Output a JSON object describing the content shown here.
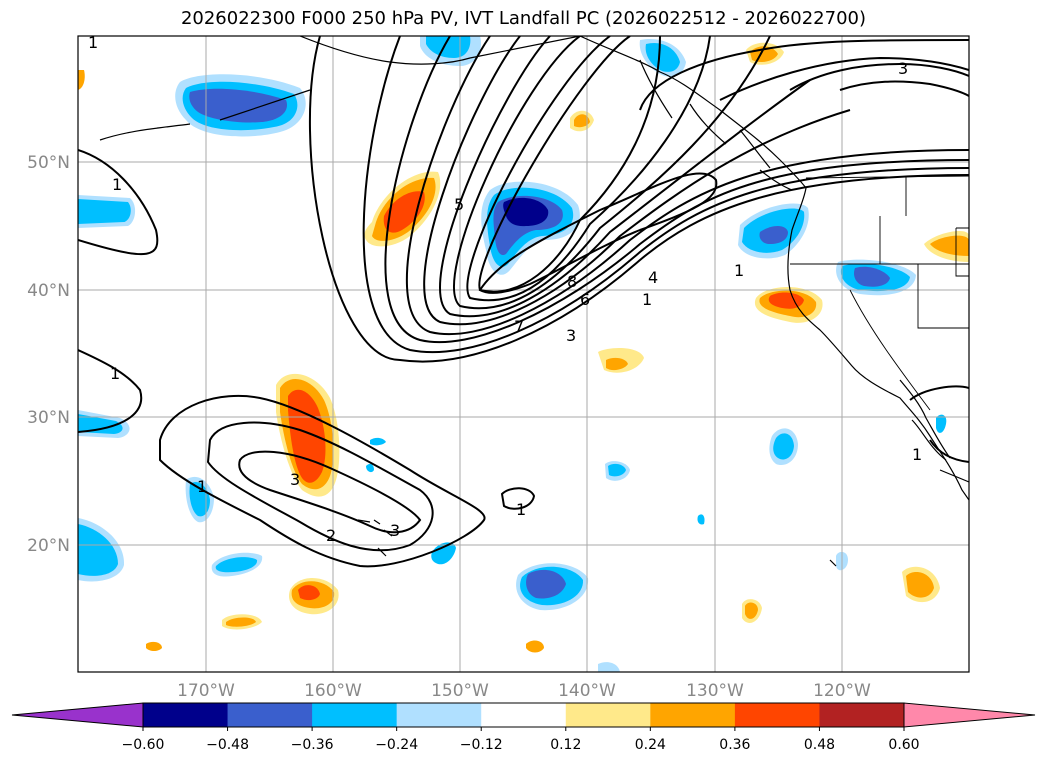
{
  "title": "2026022300 F000 250 hPa PV, IVT Landfall PC (2026022512 - 2026022700)",
  "axes": {
    "lat_labels": [
      "50°N",
      "40°N",
      "30°N",
      "20°N"
    ],
    "lon_labels": [
      "170°W",
      "160°W",
      "150°W",
      "140°W",
      "130°W",
      "120°W"
    ]
  },
  "colorbar": {
    "ticks": [
      "−0.60",
      "−0.48",
      "−0.36",
      "−0.24",
      "−0.12",
      "0.12",
      "0.24",
      "0.36",
      "0.48",
      "0.60"
    ],
    "colors": [
      "#9932cc",
      "#00008b",
      "#3a5fcd",
      "#00bfff",
      "#b0e0ff",
      "#ffffff",
      "#ffe98a",
      "#ffa500",
      "#ff4500",
      "#b22222",
      "#ff88aa"
    ]
  },
  "contour_labels": [
    "1",
    "1",
    "1",
    "1",
    "1",
    "1",
    "1",
    "2",
    "3",
    "3",
    "3",
    "3",
    "4",
    "5",
    "6",
    "7",
    "8",
    "1",
    "2",
    "3"
  ],
  "fill_colors": {
    "neg_light": "#b0e0ff",
    "neg_mid": "#00bfff",
    "neg_strong": "#3a5fcd",
    "neg_max": "#00008b",
    "pos_light": "#ffe98a",
    "pos_mid": "#ffa500",
    "pos_strong": "#ff4500"
  }
}
